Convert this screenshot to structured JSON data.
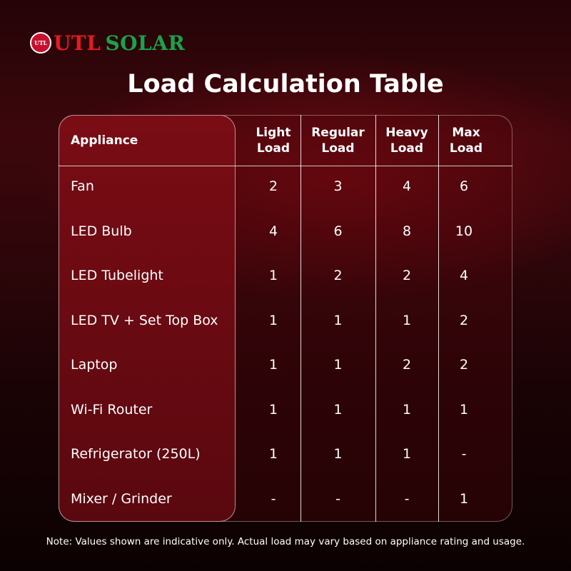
{
  "brand": {
    "logo_mark": "UTL",
    "name_part1": "UTL",
    "name_part2": "SOLAR"
  },
  "title": "Load Calculation Table",
  "table": {
    "headers": {
      "appliance": "Appliance",
      "light": "Light Load",
      "regular": "Regular Load",
      "heavy": "Heavy Load",
      "max": "Max Load"
    },
    "rows": [
      {
        "appliance": "Fan",
        "light": "2",
        "regular": "3",
        "heavy": "4",
        "max": "6"
      },
      {
        "appliance": "LED Bulb",
        "light": "4",
        "regular": "6",
        "heavy": "8",
        "max": "10"
      },
      {
        "appliance": "LED Tubelight",
        "light": "1",
        "regular": "2",
        "heavy": "2",
        "max": "4"
      },
      {
        "appliance": "LED TV + Set Top Box",
        "light": "1",
        "regular": "1",
        "heavy": "1",
        "max": "2"
      },
      {
        "appliance": "Laptop",
        "light": "1",
        "regular": "1",
        "heavy": "2",
        "max": "2"
      },
      {
        "appliance": "Wi-Fi Router",
        "light": "1",
        "regular": "1",
        "heavy": "1",
        "max": "1"
      },
      {
        "appliance": "Refrigerator (250L)",
        "light": "1",
        "regular": "1",
        "heavy": "1",
        "max": "-"
      },
      {
        "appliance": "Mixer / Grinder",
        "light": "-",
        "regular": "-",
        "heavy": "-",
        "max": "1"
      }
    ]
  },
  "note": "Note: Values shown are indicative only. Actual load may vary based on appliance rating and usage.",
  "colors": {
    "brand_red": "#e31b23",
    "brand_green": "#1aa34a"
  }
}
